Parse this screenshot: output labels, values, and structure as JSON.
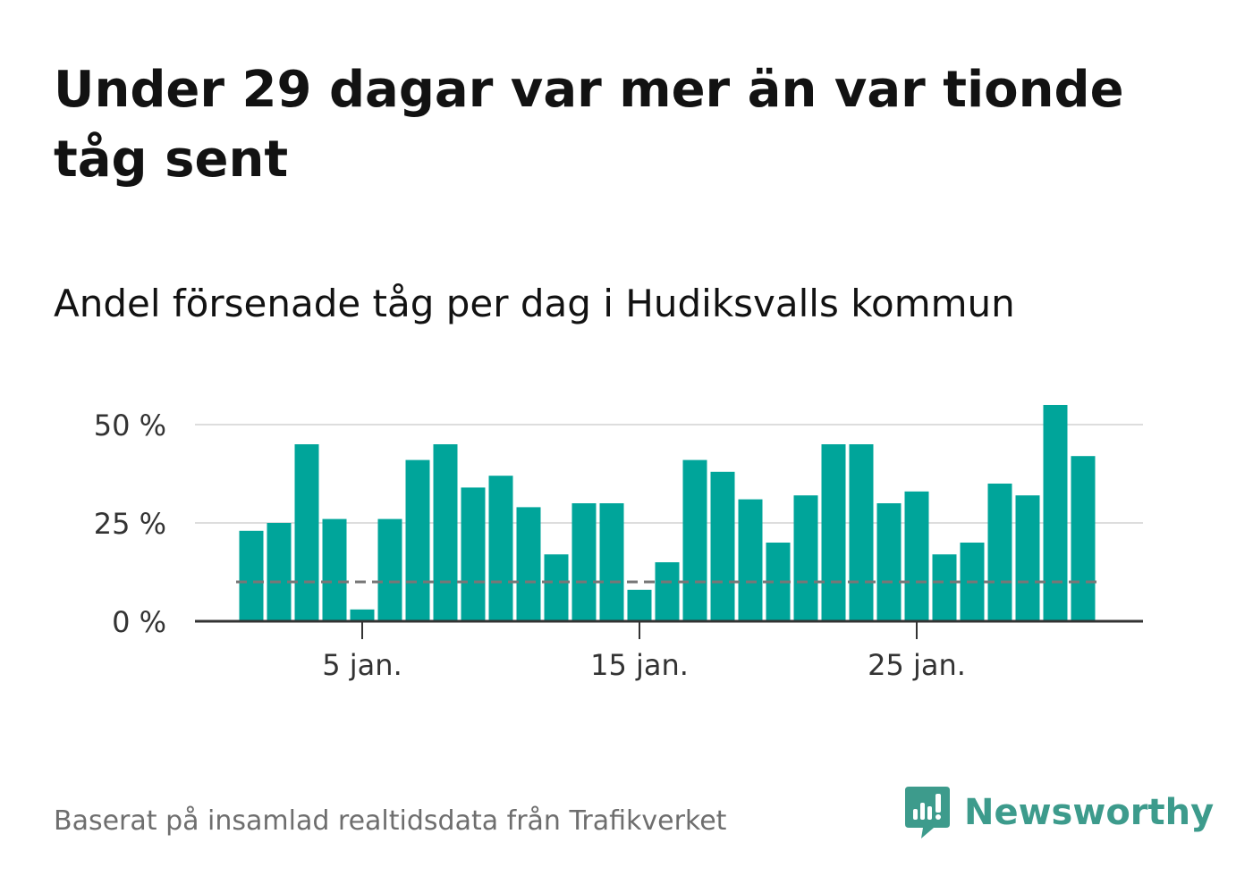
{
  "title": "Under 29 dagar var mer än var tionde tåg sent",
  "subtitle": "Andel försenade tåg per dag i Hudiksvalls kommun",
  "source": "Baserat på insamlad realtidsdata från Trafikverket",
  "brand": {
    "name": "Newsworthy",
    "icon": "newsworthy-logo-icon",
    "color": "#3d9b8c"
  },
  "colors": {
    "bar": "#00a59a",
    "reference_line": "#777777",
    "grid": "#dddddd",
    "axis": "#333333"
  },
  "chart_data": {
    "type": "bar",
    "categories": [
      "1 jan.",
      "2 jan.",
      "3 jan.",
      "4 jan.",
      "5 jan.",
      "6 jan.",
      "7 jan.",
      "8 jan.",
      "9 jan.",
      "10 jan.",
      "11 jan.",
      "12 jan.",
      "13 jan.",
      "14 jan.",
      "15 jan.",
      "16 jan.",
      "17 jan.",
      "18 jan.",
      "19 jan.",
      "20 jan.",
      "21 jan.",
      "22 jan.",
      "23 jan.",
      "24 jan.",
      "25 jan.",
      "26 jan.",
      "27 jan.",
      "28 jan.",
      "29 jan.",
      "30 jan.",
      "31 jan."
    ],
    "values": [
      23,
      25,
      45,
      26,
      3,
      26,
      41,
      45,
      34,
      37,
      29,
      17,
      30,
      30,
      8,
      15,
      41,
      38,
      31,
      20,
      32,
      45,
      45,
      30,
      33,
      17,
      20,
      35,
      32,
      55,
      42
    ],
    "ylim": [
      0,
      60
    ],
    "yticks": [
      0,
      25,
      50
    ],
    "ytick_labels": [
      "0 %",
      "25 %",
      "50 %"
    ],
    "xtick_positions": [
      "5 jan.",
      "15 jan.",
      "25 jan."
    ],
    "xtick_labels": [
      "5 jan.",
      "15 jan.",
      "25 jan."
    ],
    "reference_line": 10,
    "unit": "%",
    "grid": true
  }
}
